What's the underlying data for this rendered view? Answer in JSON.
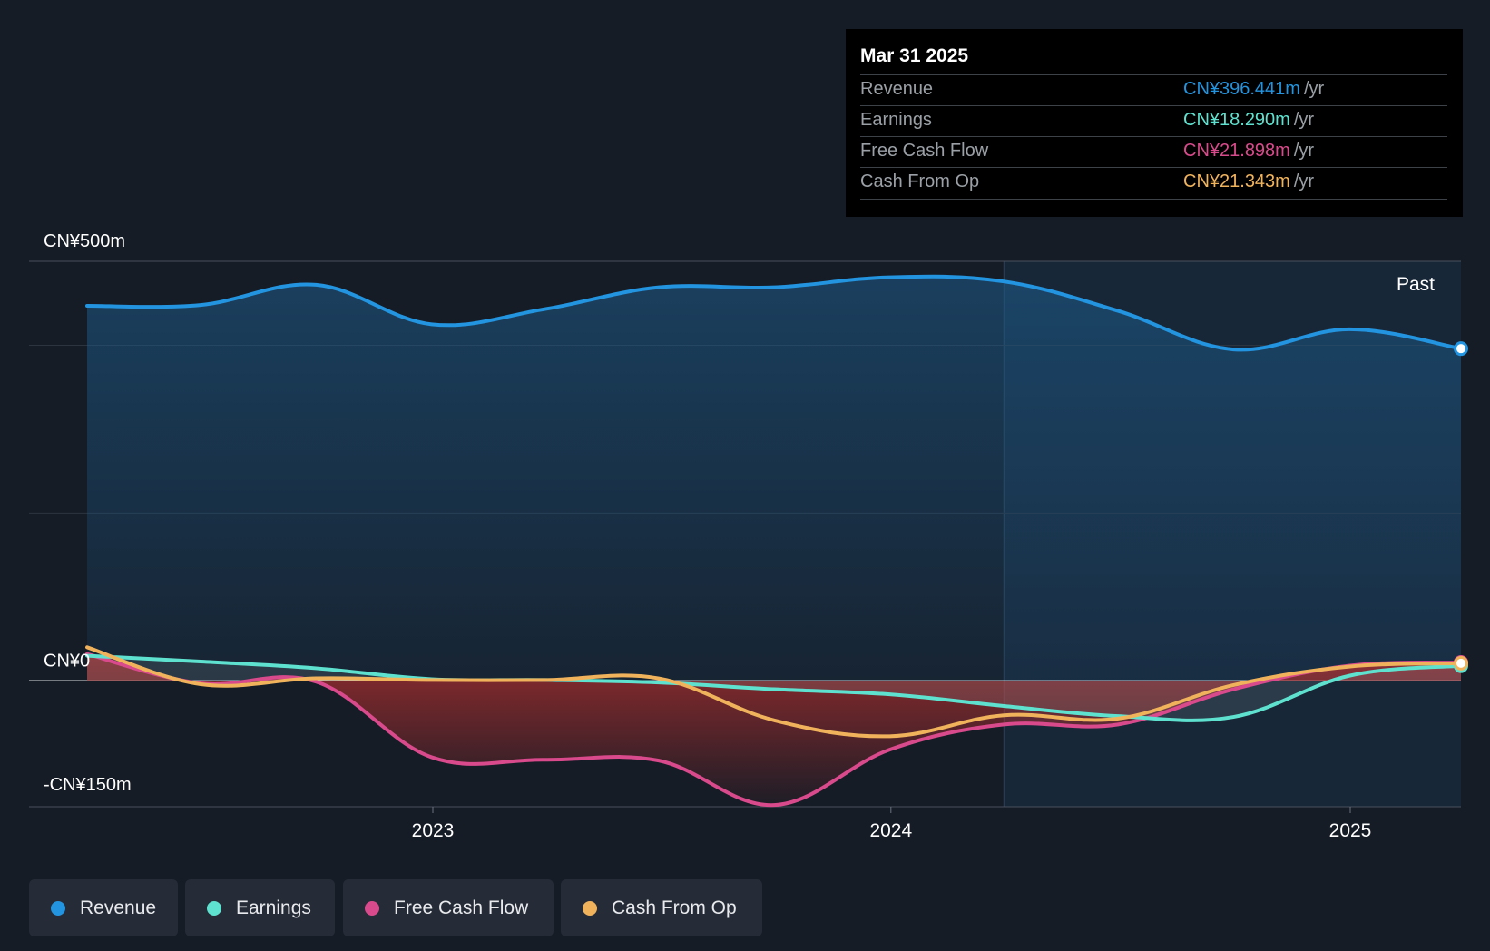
{
  "chart_data": {
    "type": "area",
    "y_axis": {
      "top_label": "CN¥500m",
      "zero_label": "CN¥0",
      "bottom_label": "-CN¥150m",
      "ylim": [
        -150,
        500
      ]
    },
    "x_axis": {
      "ticks": [
        {
          "label": "2023",
          "date": "2023-01-01"
        },
        {
          "label": "2024",
          "date": "2024-01-01"
        },
        {
          "label": "2025",
          "date": "2025-01-01"
        }
      ],
      "range": [
        "2022-04-01",
        "2025-03-31"
      ]
    },
    "past_label": "Past",
    "past_start": "2024-03-31",
    "dates": [
      "2022-03-31",
      "2022-06-30",
      "2022-09-30",
      "2022-12-31",
      "2023-03-31",
      "2023-06-30",
      "2023-09-30",
      "2023-12-31",
      "2024-03-31",
      "2024-06-30",
      "2024-09-30",
      "2024-12-31",
      "2025-03-31"
    ],
    "series": [
      {
        "name": "Revenue",
        "color": "#2394df",
        "values": [
          447,
          448,
          472,
          425,
          443,
          469,
          469,
          481,
          476,
          441,
          395,
          419,
          396
        ]
      },
      {
        "name": "Earnings",
        "color": "#5ee2cf",
        "values": [
          30,
          23,
          15,
          2,
          1,
          -2,
          -10,
          -16,
          -30,
          -42,
          -43,
          6,
          18
        ]
      },
      {
        "name": "Free Cash Flow",
        "color": "#d94a8c",
        "values": [
          32,
          -3,
          -1,
          -91,
          -94,
          -95,
          -148,
          -82,
          -52,
          -52,
          -10,
          18,
          22
        ]
      },
      {
        "name": "Cash From Op",
        "color": "#f0b35c",
        "values": [
          40,
          -4,
          3,
          1,
          1,
          3,
          -47,
          -66,
          -41,
          -45,
          -5,
          17,
          21
        ]
      }
    ],
    "grid": true,
    "legend_placement": "bottom-left"
  },
  "tooltip": {
    "date": "Mar 31 2025",
    "rows": [
      {
        "label": "Revenue",
        "value": "CN¥396.441m",
        "unit": "/yr",
        "color": "#2394df"
      },
      {
        "label": "Earnings",
        "value": "CN¥18.290m",
        "unit": "/yr",
        "color": "#5ee2cf"
      },
      {
        "label": "Free Cash Flow",
        "value": "CN¥21.898m",
        "unit": "/yr",
        "color": "#d94a8c"
      },
      {
        "label": "Cash From Op",
        "value": "CN¥21.343m",
        "unit": "/yr",
        "color": "#f0b35c"
      }
    ]
  },
  "legend": [
    {
      "label": "Revenue",
      "color": "#2394df"
    },
    {
      "label": "Earnings",
      "color": "#5ee2cf"
    },
    {
      "label": "Free Cash Flow",
      "color": "#d94a8c"
    },
    {
      "label": "Cash From Op",
      "color": "#f0b35c"
    }
  ]
}
